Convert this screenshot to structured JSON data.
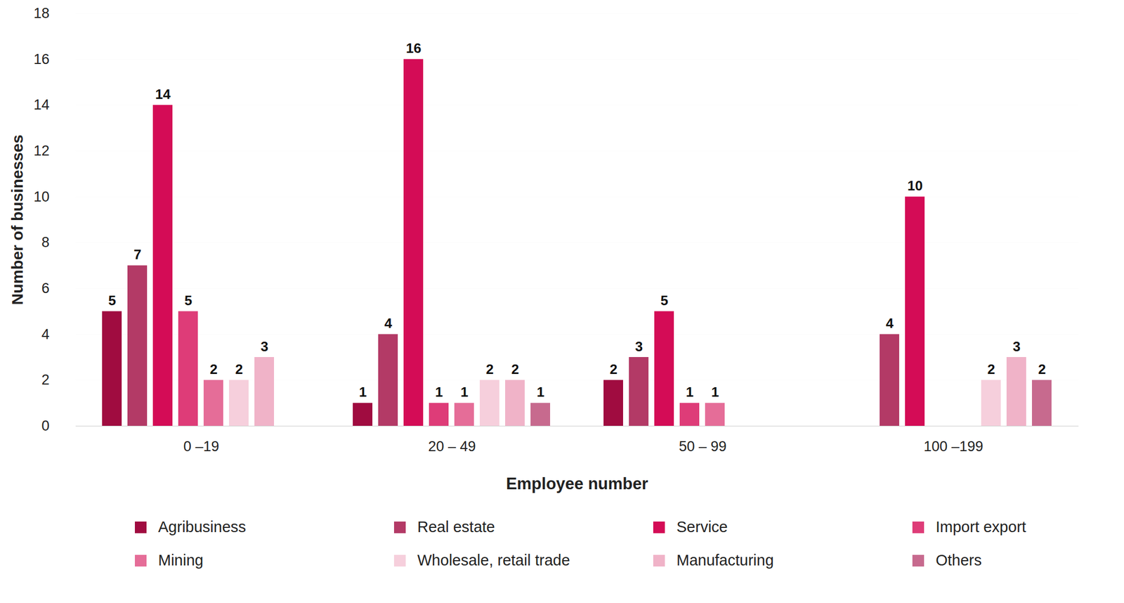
{
  "chart_data": {
    "type": "bar",
    "x_label": "Employee number",
    "y_label": "Number of businesses",
    "categories": [
      "0 –19",
      "20 – 49",
      "50 – 99",
      "100 –199"
    ],
    "series": [
      {
        "name": "Agribusiness",
        "color": "#a00c40",
        "values": [
          5,
          1,
          2,
          null
        ]
      },
      {
        "name": "Real estate",
        "color": "#b33a66",
        "values": [
          7,
          4,
          3,
          4
        ]
      },
      {
        "name": "Service",
        "color": "#d40c56",
        "values": [
          14,
          16,
          5,
          10
        ]
      },
      {
        "name": "Import export",
        "color": "#de3c78",
        "values": [
          5,
          1,
          1,
          null
        ]
      },
      {
        "name": "Mining",
        "color": "#e56d98",
        "values": [
          2,
          1,
          1,
          null
        ]
      },
      {
        "name": "Wholesale, retail trade",
        "color": "#f6cfdc",
        "values": [
          2,
          2,
          null,
          2
        ]
      },
      {
        "name": "Manufacturing",
        "color": "#f0b3c8",
        "values": [
          3,
          2,
          null,
          3
        ]
      },
      {
        "name": "Others",
        "color": "#c76a8e",
        "values": [
          null,
          1,
          null,
          2
        ]
      }
    ],
    "ylim": [
      0,
      18
    ],
    "yticks": [
      0,
      2,
      4,
      6,
      8,
      10,
      12,
      14,
      16,
      18
    ],
    "grid": true,
    "data_labels": true,
    "legend": "bottom"
  }
}
